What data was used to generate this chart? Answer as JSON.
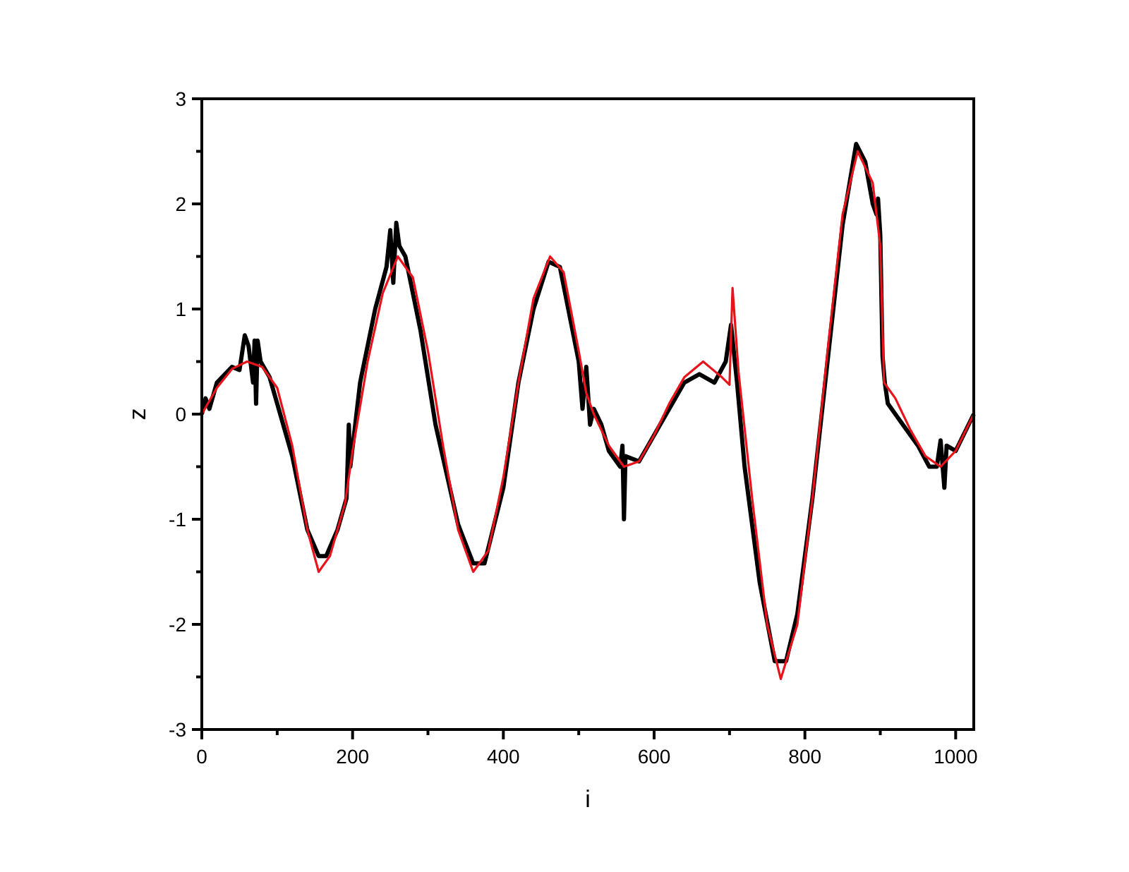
{
  "chart_data": {
    "type": "line",
    "xlabel": "i",
    "ylabel": "z",
    "xlim": [
      0,
      1024
    ],
    "ylim": [
      -3,
      3
    ],
    "xticks": [
      0,
      {
        "value": 100,
        "label": null
      },
      200,
      {
        "value": 300,
        "label": null
      },
      400,
      {
        "value": 500,
        "label": null
      },
      600,
      {
        "value": 700,
        "label": null
      },
      800,
      {
        "value": 900,
        "label": null
      },
      1000
    ],
    "yticks": [
      -3,
      {
        "value": -2.5,
        "label": null
      },
      -2,
      {
        "value": -1.5,
        "label": null
      },
      -1,
      {
        "value": -0.5,
        "label": null
      },
      0,
      {
        "value": 0.5,
        "label": null
      },
      1,
      {
        "value": 1.5,
        "label": null
      },
      2,
      {
        "value": 2.5,
        "label": null
      },
      3
    ],
    "grid": false,
    "line_style": "solid",
    "series": [
      {
        "color": "#000000",
        "x": [
          0,
          5,
          10,
          20,
          40,
          50,
          57,
          62,
          68,
          70,
          72,
          74,
          78,
          90,
          100,
          120,
          140,
          155,
          165,
          180,
          192,
          195,
          197,
          210,
          230,
          245,
          250,
          254,
          258,
          262,
          270,
          290,
          310,
          340,
          360,
          375,
          400,
          420,
          440,
          460,
          475,
          500,
          505,
          510,
          515,
          520,
          530,
          540,
          555,
          558,
          560,
          562,
          580,
          600,
          640,
          660,
          680,
          695,
          702,
          710,
          720,
          740,
          760,
          775,
          790,
          810,
          830,
          850,
          868,
          880,
          890,
          895,
          897,
          900,
          903,
          906,
          910,
          930,
          950,
          965,
          975,
          980,
          985,
          988,
          1000,
          1024
        ],
        "values": [
          0,
          0.15,
          0.05,
          0.3,
          0.45,
          0.42,
          0.75,
          0.65,
          0.3,
          0.7,
          0.1,
          0.7,
          0.5,
          0.35,
          0.1,
          -0.4,
          -1.1,
          -1.35,
          -1.35,
          -1.1,
          -0.8,
          -0.1,
          -0.5,
          0.3,
          1.0,
          1.4,
          1.75,
          1.25,
          1.82,
          1.6,
          1.5,
          0.8,
          -0.1,
          -1.05,
          -1.42,
          -1.42,
          -0.7,
          0.3,
          1.0,
          1.45,
          1.4,
          0.5,
          0.05,
          0.45,
          -0.1,
          0.05,
          -0.1,
          -0.35,
          -0.5,
          -0.3,
          -1.0,
          -0.4,
          -0.45,
          -0.2,
          0.3,
          0.38,
          0.3,
          0.5,
          0.85,
          0.3,
          -0.5,
          -1.6,
          -2.35,
          -2.35,
          -1.9,
          -0.8,
          0.5,
          1.8,
          2.57,
          2.4,
          2.0,
          1.9,
          2.05,
          1.7,
          0.55,
          0.3,
          0.1,
          -0.1,
          -0.3,
          -0.5,
          -0.5,
          -0.25,
          -0.7,
          -0.3,
          -0.35,
          0
        ]
      },
      {
        "color": "#e8141c",
        "x": [
          0,
          20,
          40,
          60,
          80,
          100,
          120,
          140,
          155,
          170,
          190,
          200,
          220,
          240,
          260,
          280,
          300,
          320,
          340,
          360,
          380,
          400,
          420,
          440,
          462,
          480,
          500,
          510,
          520,
          540,
          560,
          580,
          600,
          620,
          640,
          665,
          690,
          700,
          704,
          712,
          730,
          750,
          768,
          790,
          810,
          830,
          850,
          870,
          890,
          900,
          905,
          920,
          940,
          960,
          980,
          1000,
          1024
        ],
        "values": [
          0,
          0.25,
          0.43,
          0.5,
          0.45,
          0.25,
          -0.3,
          -1.1,
          -1.5,
          -1.35,
          -0.85,
          -0.35,
          0.5,
          1.15,
          1.5,
          1.3,
          0.6,
          -0.3,
          -1.1,
          -1.5,
          -1.3,
          -0.6,
          0.3,
          1.1,
          1.5,
          1.35,
          0.6,
          0.2,
          0.0,
          -0.3,
          -0.5,
          -0.45,
          -0.2,
          0.1,
          0.35,
          0.5,
          0.35,
          0.28,
          1.2,
          0.4,
          -0.8,
          -2.0,
          -2.52,
          -2.0,
          -0.8,
          0.6,
          1.9,
          2.5,
          2.2,
          1.6,
          0.3,
          0.15,
          -0.15,
          -0.4,
          -0.5,
          -0.35,
          0
        ]
      }
    ]
  }
}
